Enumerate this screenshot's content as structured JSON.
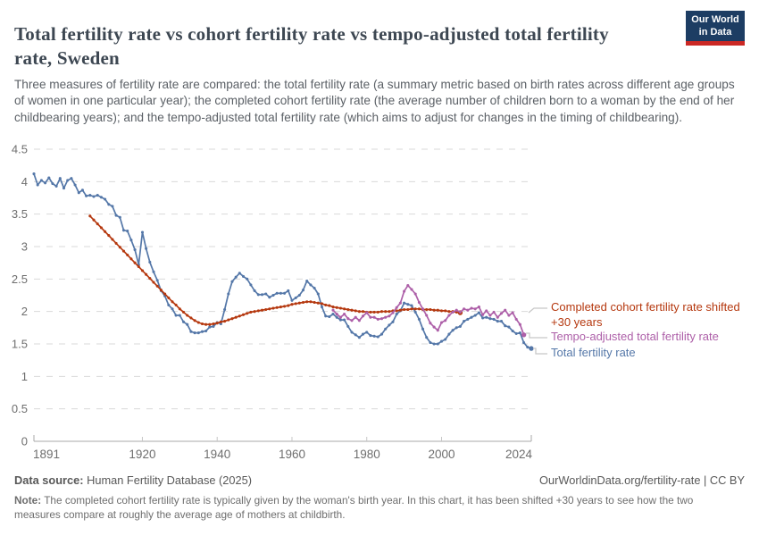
{
  "header": {
    "title": "Total fertility rate vs cohort fertility rate vs tempo-adjusted total fertility rate, Sweden",
    "subtitle": "Three measures of fertility rate are compared: the total fertility rate (a summary metric based on birth rates across different age groups of women in one particular year); the completed cohort fertility rate (the average number of children born to a woman by the end of her childbearing years); and the tempo-adjusted total fertility rate (which aims to adjust for changes in the timing of childbearing).",
    "logo": {
      "line1": "Our World",
      "line2": "in Data",
      "bg_color": "#1d3d63",
      "accent_color": "#cb2824"
    }
  },
  "chart_data": {
    "type": "line",
    "title": "Total fertility rate vs cohort fertility rate vs tempo-adjusted total fertility rate, Sweden",
    "entity": "Sweden",
    "x_axis": {
      "range": [
        1891,
        2024
      ],
      "ticks": [
        1891,
        1920,
        1940,
        1960,
        1980,
        2000,
        2024
      ]
    },
    "y_axis": {
      "range": [
        0,
        4.5
      ],
      "ticks": [
        0,
        0.5,
        1,
        1.5,
        2,
        2.5,
        3,
        3.5,
        4,
        4.5
      ],
      "grid": "dashed"
    },
    "legend_position": "right",
    "series": [
      {
        "name": "Total fertility rate",
        "color": "#5477a8",
        "start_year": 1891,
        "end_year": 2024,
        "values": [
          4.12,
          3.95,
          4.02,
          3.98,
          4.06,
          3.97,
          3.93,
          4.05,
          3.9,
          4.02,
          4.05,
          3.95,
          3.83,
          3.87,
          3.78,
          3.79,
          3.77,
          3.79,
          3.76,
          3.73,
          3.65,
          3.62,
          3.48,
          3.45,
          3.25,
          3.24,
          3.1,
          2.95,
          2.72,
          3.22,
          2.97,
          2.76,
          2.61,
          2.48,
          2.32,
          2.24,
          2.1,
          2.04,
          1.94,
          1.94,
          1.84,
          1.8,
          1.69,
          1.67,
          1.67,
          1.69,
          1.7,
          1.76,
          1.77,
          1.83,
          1.81,
          2.03,
          2.27,
          2.46,
          2.53,
          2.59,
          2.54,
          2.5,
          2.41,
          2.32,
          2.26,
          2.26,
          2.27,
          2.22,
          2.25,
          2.28,
          2.28,
          2.28,
          2.32,
          2.17,
          2.21,
          2.25,
          2.33,
          2.47,
          2.41,
          2.36,
          2.27,
          2.07,
          1.93,
          1.92,
          1.96,
          1.91,
          1.87,
          1.87,
          1.77,
          1.68,
          1.64,
          1.6,
          1.65,
          1.68,
          1.63,
          1.62,
          1.61,
          1.65,
          1.73,
          1.79,
          1.84,
          1.96,
          2.01,
          2.13,
          2.11,
          2.09,
          1.99,
          1.88,
          1.73,
          1.6,
          1.52,
          1.5,
          1.5,
          1.54,
          1.57,
          1.65,
          1.71,
          1.75,
          1.77,
          1.85,
          1.88,
          1.91,
          1.94,
          1.98,
          1.9,
          1.91,
          1.89,
          1.88,
          1.85,
          1.85,
          1.78,
          1.76,
          1.7,
          1.66,
          1.67,
          1.52,
          1.45,
          1.43
        ]
      },
      {
        "name": "Completed cohort fertility rate shifted +30 years",
        "color": "#b5380f",
        "start_year": 1906,
        "end_year": 2005,
        "values": [
          3.47,
          3.41,
          3.35,
          3.29,
          3.23,
          3.17,
          3.11,
          3.05,
          2.99,
          2.93,
          2.87,
          2.81,
          2.75,
          2.69,
          2.63,
          2.57,
          2.51,
          2.45,
          2.39,
          2.33,
          2.27,
          2.21,
          2.15,
          2.1,
          2.04,
          1.99,
          1.94,
          1.9,
          1.86,
          1.83,
          1.81,
          1.8,
          1.8,
          1.81,
          1.82,
          1.84,
          1.85,
          1.87,
          1.89,
          1.91,
          1.93,
          1.95,
          1.97,
          1.99,
          2.0,
          2.01,
          2.02,
          2.03,
          2.04,
          2.05,
          2.06,
          2.07,
          2.08,
          2.09,
          2.11,
          2.12,
          2.13,
          2.14,
          2.15,
          2.15,
          2.14,
          2.13,
          2.12,
          2.1,
          2.09,
          2.07,
          2.06,
          2.05,
          2.04,
          2.03,
          2.02,
          2.01,
          2.0,
          2.0,
          1.99,
          1.99,
          1.99,
          1.99,
          2.0,
          2.0,
          2.0,
          2.01,
          2.01,
          2.02,
          2.03,
          2.03,
          2.04,
          2.04,
          2.04,
          2.03,
          2.03,
          2.03,
          2.02,
          2.02,
          2.01,
          2.01,
          2.0,
          2.0,
          1.99,
          1.98
        ]
      },
      {
        "name": "Tempo-adjusted total fertility rate",
        "color": "#ad5fa8",
        "start_year": 1971,
        "end_year": 2022,
        "values": [
          2.02,
          1.96,
          1.91,
          1.96,
          1.89,
          1.86,
          1.91,
          1.86,
          1.93,
          1.98,
          1.91,
          1.91,
          1.88,
          1.89,
          1.91,
          1.93,
          1.98,
          2.06,
          2.13,
          2.31,
          2.4,
          2.34,
          2.27,
          2.14,
          2.04,
          1.94,
          1.82,
          1.76,
          1.71,
          1.83,
          1.86,
          1.94,
          1.99,
          2.02,
          1.99,
          2.04,
          2.02,
          2.05,
          2.04,
          2.07,
          1.95,
          2.01,
          1.94,
          1.99,
          1.91,
          1.97,
          2.02,
          1.94,
          1.98,
          1.88,
          1.8,
          1.64
        ]
      }
    ]
  },
  "legend": {
    "cohort_label": "Completed cohort fertility rate shifted +30 years",
    "tempo_label": "Tempo-adjusted total fertility rate",
    "tfr_label": "Total fertility rate"
  },
  "footer": {
    "source_label": "Data source:",
    "source_value": " Human Fertility Database (2025)",
    "credit": "OurWorldinData.org/fertility-rate | CC BY",
    "note_label": "Note:",
    "note_value": " The completed cohort fertility rate is typically given by the woman's birth year. In this chart, it has been shifted +30 years to see how the two measures compare at roughly the average age of mothers at childbirth."
  }
}
